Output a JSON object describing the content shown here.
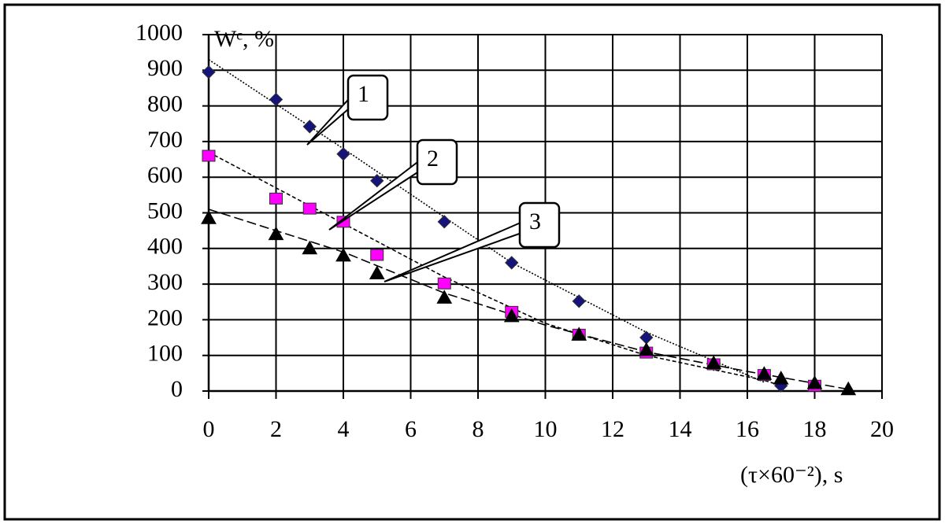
{
  "chart_data": {
    "type": "scatter",
    "y_label": "Wᶜ, %",
    "x_label": "(τ×60⁻²), s",
    "xlim": [
      0,
      20
    ],
    "xticks": [
      0,
      2,
      4,
      6,
      8,
      10,
      12,
      14,
      16,
      18,
      20
    ],
    "ylim": [
      0,
      1000
    ],
    "yticks": [
      0,
      100,
      200,
      300,
      400,
      500,
      600,
      700,
      800,
      900,
      1000
    ],
    "grid": true,
    "annotations": [
      "1",
      "2",
      "3"
    ],
    "series": [
      {
        "color": "#14147a",
        "marker": "diamond",
        "x": [
          0,
          2,
          3,
          4,
          5,
          7,
          9,
          11,
          13,
          15,
          17
        ],
        "values": [
          895,
          818,
          742,
          665,
          590,
          475,
          360,
          252,
          150,
          75,
          15
        ],
        "trend_x": [
          0,
          4,
          9,
          13,
          16.5
        ],
        "trend_y": [
          930,
          680,
          360,
          165,
          25
        ]
      },
      {
        "color": "#ff00ff",
        "marker": "square",
        "x": [
          0,
          2,
          3,
          4,
          5,
          7,
          9,
          11,
          13,
          15,
          16.5,
          18
        ],
        "values": [
          660,
          540,
          512,
          475,
          382,
          302,
          222,
          158,
          108,
          75,
          45,
          15
        ],
        "trend_x": [
          0,
          4,
          7,
          10,
          13,
          16.5,
          17
        ],
        "trend_y": [
          670,
          470,
          320,
          190,
          100,
          30,
          15
        ]
      },
      {
        "color": "#000000",
        "marker": "triangle",
        "x": [
          0,
          2,
          3,
          4,
          5,
          7,
          9,
          11,
          13,
          15,
          16.5,
          17,
          18,
          19
        ],
        "values": [
          485,
          440,
          400,
          380,
          330,
          262,
          210,
          158,
          115,
          78,
          48,
          35,
          22,
          5
        ],
        "trend_x": [
          0,
          4,
          7,
          10,
          13,
          16,
          19
        ],
        "trend_y": [
          510,
          390,
          275,
          185,
          110,
          55,
          5
        ]
      }
    ]
  }
}
